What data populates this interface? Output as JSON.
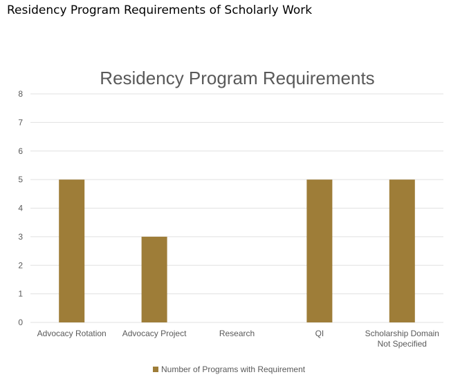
{
  "page": {
    "heading": "Residency Program Requirements of Scholarly Work"
  },
  "colors": {
    "bar": "#9e7d38",
    "gridline": "#e0e0e0",
    "text": "#595959",
    "title": "#595959"
  },
  "chart_data": {
    "type": "bar",
    "title": "Residency Program Requirements",
    "categories": [
      [
        "Advocacy Rotation"
      ],
      [
        "Advocacy Project"
      ],
      [
        "Research"
      ],
      [
        "QI"
      ],
      [
        "Scholarship Domain",
        "Not Specified"
      ]
    ],
    "series": [
      {
        "name": "Number of Programs with Requirement",
        "values": [
          5,
          3,
          0,
          5,
          5
        ]
      }
    ],
    "yticks": [
      0,
      1,
      2,
      3,
      4,
      5,
      6,
      7,
      8
    ],
    "ylim": [
      0,
      8
    ],
    "xlabel": "",
    "ylabel": "",
    "grid": true,
    "legend": "bottom"
  }
}
